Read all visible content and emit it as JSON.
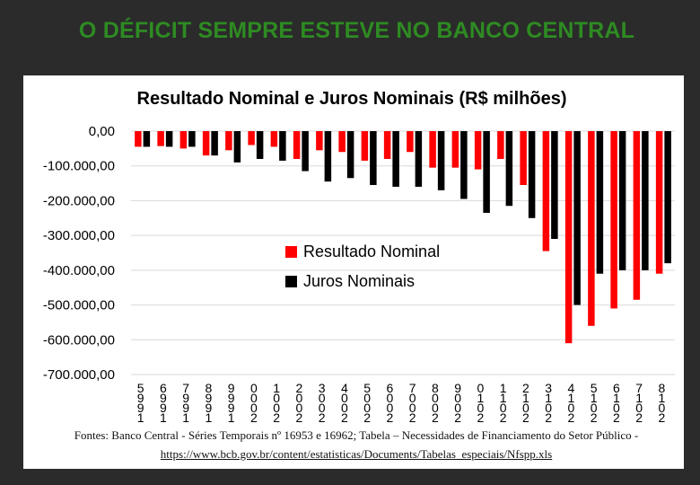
{
  "slide": {
    "title": "O DÉFICIT SEMPRE ESTEVE NO BANCO CENTRAL",
    "title_color": "#2e8b22",
    "background": "#2b2b2b"
  },
  "chart_data": {
    "type": "bar",
    "title": "Resultado Nominal e Juros Nominais (R$ milhões)",
    "xlabel": "",
    "ylabel": "",
    "ylim": [
      -700000,
      0
    ],
    "yticks": [
      0,
      -100000,
      -200000,
      -300000,
      -400000,
      -500000,
      -600000,
      -700000
    ],
    "ytick_labels": [
      "0,00",
      "-100.000,00",
      "-200.000,00",
      "-300.000,00",
      "-400.000,00",
      "-500.000,00",
      "-600.000,00",
      "-700.000,00"
    ],
    "grid": true,
    "legend_position": "center-right",
    "categories": [
      "1995",
      "1996",
      "1997",
      "1998",
      "1999",
      "2000",
      "2001",
      "2002",
      "2003",
      "2004",
      "2005",
      "2006",
      "2007",
      "2008",
      "2009",
      "2010",
      "2011",
      "2012",
      "2013",
      "2014",
      "2015",
      "2016",
      "2017",
      "2018"
    ],
    "category_labels": [
      [
        "5",
        "9",
        "9",
        "1"
      ],
      [
        "6",
        "9",
        "9",
        "1"
      ],
      [
        "7",
        "9",
        "9",
        "1"
      ],
      [
        "8",
        "9",
        "9",
        "1"
      ],
      [
        "9",
        "9",
        "9",
        "1"
      ],
      [
        "0",
        "0",
        "0",
        "2"
      ],
      [
        "1",
        "0",
        "0",
        "2"
      ],
      [
        "2",
        "0",
        "0",
        "2"
      ],
      [
        "3",
        "0",
        "0",
        "2"
      ],
      [
        "4",
        "0",
        "0",
        "2"
      ],
      [
        "5",
        "0",
        "0",
        "2"
      ],
      [
        "6",
        "0",
        "0",
        "2"
      ],
      [
        "7",
        "0",
        "0",
        "2"
      ],
      [
        "8",
        "0",
        "0",
        "2"
      ],
      [
        "9",
        "0",
        "0",
        "2"
      ],
      [
        "0",
        "1",
        "0",
        "2"
      ],
      [
        "1",
        "1",
        "0",
        "2"
      ],
      [
        "2",
        "1",
        "0",
        "2"
      ],
      [
        "3",
        "1",
        "0",
        "2"
      ],
      [
        "4",
        "1",
        "0",
        "2"
      ],
      [
        "5",
        "1",
        "0",
        "2"
      ],
      [
        "6",
        "1",
        "0",
        "2"
      ],
      [
        "7",
        "1",
        "0",
        "2"
      ],
      [
        "8",
        "1",
        "0",
        "2"
      ]
    ],
    "series": [
      {
        "name": "Resultado Nominal",
        "color": "#ff0000",
        "values": [
          -45000,
          -43000,
          -50000,
          -70000,
          -55000,
          -40000,
          -45000,
          -80000,
          -55000,
          -60000,
          -85000,
          -80000,
          -60000,
          -105000,
          -105000,
          -110000,
          -80000,
          -155000,
          -345000,
          -610000,
          -560000,
          -510000,
          -485000,
          -410000
        ]
      },
      {
        "name": "Juros Nominais",
        "color": "#000000",
        "values": [
          -45000,
          -45000,
          -45000,
          -70000,
          -90000,
          -80000,
          -85000,
          -115000,
          -145000,
          -135000,
          -155000,
          -160000,
          -160000,
          -170000,
          -195000,
          -235000,
          -215000,
          -250000,
          -310000,
          -500000,
          -410000,
          -400000,
          -400000,
          -380000
        ]
      }
    ]
  },
  "footer": {
    "source_text": "Fontes: Banco Central - Séries Temporais nº 16953 e 16962; Tabela – Necessidades de Financiamento do Setor Público - ",
    "link_text": "https://www.bcb.gov.br/content/estatisticas/Documents/Tabelas_especiais/Nfspp.xls"
  }
}
